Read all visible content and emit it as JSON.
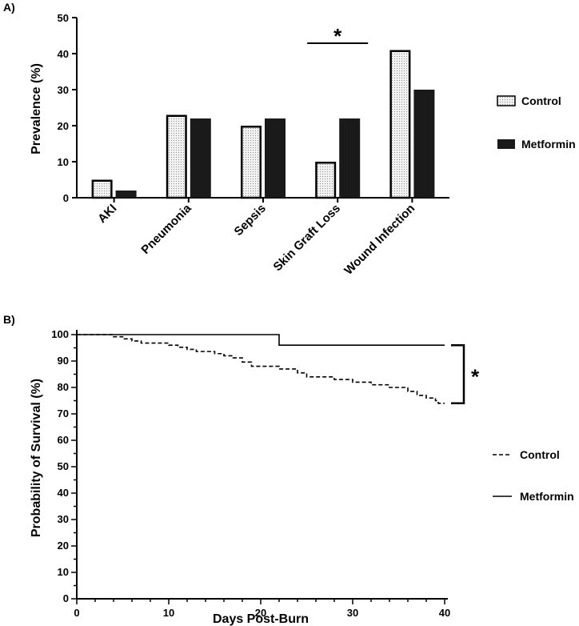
{
  "panel_labels": {
    "a": "A)",
    "b": "B)"
  },
  "chart_data": [
    {
      "type": "bar",
      "panel": "A)",
      "categories": [
        "AKI",
        "Pneumonia",
        "Sepsis",
        "Skin Graft Loss",
        "Wound Infection"
      ],
      "series": [
        {
          "name": "Control",
          "values": [
            5,
            23,
            20,
            10,
            41
          ]
        },
        {
          "name": "Metformin",
          "values": [
            2,
            22,
            22,
            22,
            30
          ]
        }
      ],
      "ylabel": "Prevalence (%)",
      "xlabel": "",
      "ylim": [
        0,
        50
      ],
      "yticks": [
        0,
        10,
        20,
        30,
        40,
        50
      ],
      "legend": "right",
      "annotation": {
        "text": "*",
        "category": "Skin Graft Loss"
      }
    },
    {
      "type": "line",
      "panel": "B)",
      "xlabel": "Days Post-Burn",
      "ylabel": "Probability of Survival (%)",
      "xlim": [
        0,
        40
      ],
      "ylim": [
        0,
        100
      ],
      "xticks": [
        0,
        10,
        20,
        30,
        40
      ],
      "yticks": [
        0,
        10,
        20,
        30,
        40,
        50,
        60,
        70,
        80,
        90,
        100
      ],
      "legend": "right",
      "series": [
        {
          "name": "Control",
          "style": "dashed",
          "points": [
            [
              0,
              100
            ],
            [
              4,
              100
            ],
            [
              4,
              99.2
            ],
            [
              5,
              99.2
            ],
            [
              5,
              98.4
            ],
            [
              6,
              98.4
            ],
            [
              6,
              97.6
            ],
            [
              7,
              97.6
            ],
            [
              7,
              96.8
            ],
            [
              10,
              96.8
            ],
            [
              10,
              96
            ],
            [
              11,
              96
            ],
            [
              11,
              95.2
            ],
            [
              12,
              95.2
            ],
            [
              12,
              94.4
            ],
            [
              13,
              94.4
            ],
            [
              13,
              93.6
            ],
            [
              15,
              93.6
            ],
            [
              15,
              92.8
            ],
            [
              16,
              92.8
            ],
            [
              16,
              92
            ],
            [
              17,
              92
            ],
            [
              17,
              91.2
            ],
            [
              18,
              91.2
            ],
            [
              18,
              89.6
            ],
            [
              19,
              89.6
            ],
            [
              19,
              88
            ],
            [
              22,
              88
            ],
            [
              22,
              87
            ],
            [
              24,
              87
            ],
            [
              24,
              85.5
            ],
            [
              25,
              85.5
            ],
            [
              25,
              84
            ],
            [
              28,
              84
            ],
            [
              28,
              83
            ],
            [
              30,
              83
            ],
            [
              30,
              82
            ],
            [
              32,
              82
            ],
            [
              32,
              81
            ],
            [
              34,
              81
            ],
            [
              34,
              80
            ],
            [
              36,
              80
            ],
            [
              36,
              78.5
            ],
            [
              37,
              78.5
            ],
            [
              37,
              77
            ],
            [
              38,
              77
            ],
            [
              38,
              76
            ],
            [
              39,
              76
            ],
            [
              39,
              75
            ],
            [
              39.3,
              75
            ],
            [
              39.3,
              74
            ],
            [
              40,
              74
            ]
          ]
        },
        {
          "name": "Metformin",
          "style": "solid",
          "points": [
            [
              0,
              100
            ],
            [
              22,
              100
            ],
            [
              22,
              96
            ],
            [
              40,
              96
            ]
          ]
        }
      ],
      "annotation": {
        "text": "*",
        "between": "Control vs Metformin at day 40"
      }
    }
  ]
}
